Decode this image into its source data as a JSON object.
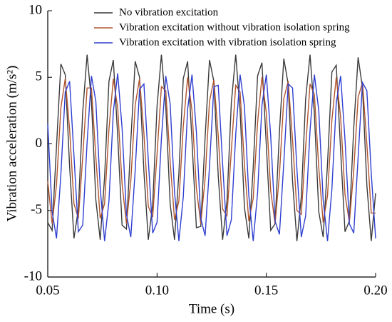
{
  "chart_data": {
    "type": "line",
    "xlabel": "Time (s)",
    "ylabel": "Vibration acceleration  (m/s²)",
    "x": [
      0.05,
      0.052,
      0.054,
      0.056,
      0.058,
      0.06,
      0.062,
      0.064,
      0.066,
      0.068,
      0.07,
      0.072,
      0.074,
      0.076,
      0.078,
      0.08,
      0.082,
      0.084,
      0.086,
      0.088,
      0.09,
      0.092,
      0.094,
      0.096,
      0.098,
      0.1,
      0.102,
      0.104,
      0.106,
      0.108,
      0.11,
      0.112,
      0.114,
      0.116,
      0.118,
      0.12,
      0.122,
      0.124,
      0.126,
      0.128,
      0.13,
      0.132,
      0.134,
      0.136,
      0.138,
      0.14,
      0.142,
      0.144,
      0.146,
      0.148,
      0.15,
      0.152,
      0.154,
      0.156,
      0.158,
      0.16,
      0.162,
      0.164,
      0.166,
      0.168,
      0.17,
      0.172,
      0.174,
      0.176,
      0.178,
      0.18,
      0.182,
      0.184,
      0.186,
      0.188,
      0.19,
      0.192,
      0.194,
      0.196,
      0.198,
      0.2
    ],
    "series": [
      {
        "name": "No vibration excitation",
        "color": "#3a3a3a",
        "values": [
          -5.9,
          -6.5,
          -0.2,
          6.0,
          5.2,
          -1.7,
          -7.1,
          -4.9,
          2.4,
          6.7,
          3.2,
          -4.2,
          -7.2,
          -2.5,
          4.7,
          6.3,
          0.6,
          -6.1,
          -6.4,
          0.2,
          6.2,
          5.0,
          -2.1,
          -7.2,
          -4.6,
          2.8,
          6.7,
          2.8,
          -4.5,
          -7.2,
          -2.2,
          4.9,
          6.2,
          0.2,
          -6.3,
          -6.2,
          0.5,
          6.3,
          4.7,
          -2.4,
          -7.2,
          -4.3,
          3.1,
          6.7,
          2.5,
          -4.8,
          -7.1,
          -1.8,
          5.1,
          6.1,
          -0.1,
          -6.5,
          -6.0,
          0.9,
          6.4,
          4.5,
          -2.8,
          -7.3,
          -4.0,
          3.4,
          6.7,
          2.2,
          -5.1,
          -7.0,
          -1.5,
          5.4,
          5.9,
          -0.5,
          -6.6,
          -5.8,
          1.2,
          6.5,
          4.2,
          -3.1,
          -7.3,
          -3.7
        ]
      },
      {
        "name": "Vibration excitation without vibration isolation spring",
        "color": "#b0552e",
        "values": [
          -2.8,
          -6.0,
          -3.1,
          2.7,
          4.9,
          1.1,
          -4.5,
          -5.6,
          -1.0,
          4.2,
          4.2,
          -1.0,
          -5.6,
          -4.5,
          1.1,
          4.9,
          2.7,
          -3.0,
          -6.0,
          -2.8,
          2.9,
          4.9,
          0.8,
          -4.7,
          -5.5,
          -0.8,
          4.3,
          4.0,
          -1.3,
          -5.7,
          -4.3,
          1.3,
          5.0,
          2.5,
          -3.3,
          -6.0,
          -2.6,
          3.2,
          4.8,
          0.6,
          -4.9,
          -5.4,
          -0.5,
          4.4,
          3.9,
          -1.6,
          -5.8,
          -4.1,
          1.6,
          5.0,
          2.3,
          -3.5,
          -6.0,
          -2.3,
          3.4,
          4.7,
          0.3,
          -5.0,
          -5.3,
          -0.2,
          4.5,
          3.7,
          -1.8,
          -5.9,
          -3.9,
          1.8,
          5.0,
          2.0,
          -3.8,
          -5.9,
          -2.0,
          3.5,
          4.6,
          0.0,
          -5.2,
          -5.2
        ]
      },
      {
        "name": "Vibration excitation with vibration isolation spring",
        "color": "#2f3fd0",
        "values": [
          1.5,
          -5.1,
          -7.1,
          -2.3,
          3.9,
          4.7,
          -0.9,
          -6.6,
          -6.1,
          0.1,
          5.1,
          3.2,
          -3.3,
          -7.3,
          -4.3,
          2.4,
          5.3,
          1.2,
          -5.3,
          -7.0,
          -2.0,
          4.1,
          4.5,
          -1.2,
          -6.7,
          -5.9,
          0.4,
          5.1,
          3.0,
          -3.6,
          -7.3,
          -4.0,
          2.6,
          5.2,
          0.9,
          -5.6,
          -6.9,
          -1.7,
          4.3,
          4.4,
          -1.5,
          -6.9,
          -5.7,
          0.7,
          5.2,
          2.8,
          -3.9,
          -7.3,
          -3.7,
          2.9,
          5.2,
          0.6,
          -5.8,
          -6.8,
          -1.4,
          4.5,
          4.2,
          -1.9,
          -7.0,
          -5.4,
          1.0,
          5.2,
          2.5,
          -4.2,
          -7.3,
          -3.4,
          3.1,
          5.1,
          0.3,
          -6.0,
          -6.7,
          -1.0,
          4.6,
          4.0,
          -2.2,
          -7.1
        ]
      }
    ],
    "xlim": [
      0.05,
      0.2
    ],
    "xticks": [
      0.05,
      {
        "value": 0.1,
        "label": "0.10"
      },
      0.15,
      {
        "value": 0.2,
        "label": "0.20"
      }
    ],
    "ylim": [
      -10,
      10
    ],
    "yticks": [
      -10,
      -5,
      0,
      5,
      10
    ],
    "grid": false
  }
}
